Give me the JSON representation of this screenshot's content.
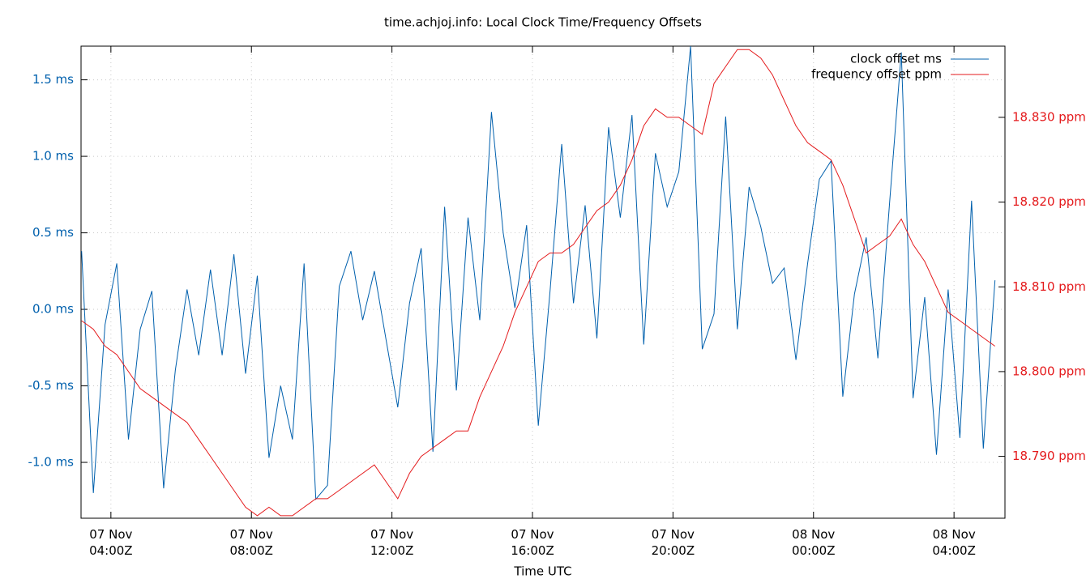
{
  "chart_data": {
    "type": "line",
    "title": "time.achjoj.info: Local Clock Time/Frequency Offsets",
    "x_label": "Time UTC",
    "grid": true,
    "legend": "top-right",
    "x": [
      "07 Nov 03:10Z",
      "07 Nov 03:30Z",
      "07 Nov 03:50Z",
      "07 Nov 04:10Z",
      "07 Nov 04:30Z",
      "07 Nov 04:50Z",
      "07 Nov 05:10Z",
      "07 Nov 05:30Z",
      "07 Nov 05:50Z",
      "07 Nov 06:10Z",
      "07 Nov 06:30Z",
      "07 Nov 06:50Z",
      "07 Nov 07:10Z",
      "07 Nov 07:30Z",
      "07 Nov 07:50Z",
      "07 Nov 08:10Z",
      "07 Nov 08:30Z",
      "07 Nov 08:50Z",
      "07 Nov 09:10Z",
      "07 Nov 09:30Z",
      "07 Nov 09:50Z",
      "07 Nov 10:10Z",
      "07 Nov 10:30Z",
      "07 Nov 10:50Z",
      "07 Nov 11:10Z",
      "07 Nov 11:30Z",
      "07 Nov 11:50Z",
      "07 Nov 12:10Z",
      "07 Nov 12:30Z",
      "07 Nov 12:50Z",
      "07 Nov 13:10Z",
      "07 Nov 13:30Z",
      "07 Nov 13:50Z",
      "07 Nov 14:10Z",
      "07 Nov 14:30Z",
      "07 Nov 14:50Z",
      "07 Nov 15:10Z",
      "07 Nov 15:30Z",
      "07 Nov 15:50Z",
      "07 Nov 16:10Z",
      "07 Nov 16:30Z",
      "07 Nov 16:50Z",
      "07 Nov 17:10Z",
      "07 Nov 17:30Z",
      "07 Nov 17:50Z",
      "07 Nov 18:10Z",
      "07 Nov 18:30Z",
      "07 Nov 18:50Z",
      "07 Nov 19:10Z",
      "07 Nov 19:30Z",
      "07 Nov 19:50Z",
      "07 Nov 20:10Z",
      "07 Nov 20:30Z",
      "07 Nov 20:50Z",
      "07 Nov 21:10Z",
      "07 Nov 21:30Z",
      "07 Nov 21:50Z",
      "07 Nov 22:10Z",
      "07 Nov 22:30Z",
      "07 Nov 22:50Z",
      "07 Nov 23:10Z",
      "07 Nov 23:30Z",
      "07 Nov 23:50Z",
      "08 Nov 00:10Z",
      "08 Nov 00:30Z",
      "08 Nov 00:50Z",
      "08 Nov 01:10Z",
      "08 Nov 01:30Z",
      "08 Nov 01:50Z",
      "08 Nov 02:10Z",
      "08 Nov 02:30Z",
      "08 Nov 02:50Z",
      "08 Nov 03:10Z",
      "08 Nov 03:30Z",
      "08 Nov 03:50Z",
      "08 Nov 04:10Z",
      "08 Nov 04:30Z",
      "08 Nov 04:50Z",
      "08 Nov 05:10Z"
    ],
    "xlim": [
      "07 Nov 03:09Z",
      "08 Nov 05:27Z"
    ],
    "xticks": [
      "07 Nov 04:00Z",
      "07 Nov 08:00Z",
      "07 Nov 12:00Z",
      "07 Nov 16:00Z",
      "07 Nov 20:00Z",
      "08 Nov 00:00Z",
      "08 Nov 04:00Z"
    ],
    "ylim": [
      -1.365,
      1.72
    ],
    "yticks": [
      {
        "value": -1.0,
        "label": "-1.0 ms"
      },
      {
        "value": -0.5,
        "label": "-0.5 ms"
      },
      {
        "value": 0.0,
        "label": "0.0 ms"
      },
      {
        "value": 0.5,
        "label": "0.5 ms"
      },
      {
        "value": 1.0,
        "label": "1.0 ms"
      },
      {
        "value": 1.5,
        "label": "1.5 ms"
      }
    ],
    "y2lim": [
      18.7827,
      18.8384
    ],
    "y2ticks": [
      {
        "value": 18.79,
        "label": "18.790 ppm"
      },
      {
        "value": 18.8,
        "label": "18.800 ppm"
      },
      {
        "value": 18.81,
        "label": "18.810 ppm"
      },
      {
        "value": 18.82,
        "label": "18.820 ppm"
      },
      {
        "value": 18.83,
        "label": "18.830 ppm"
      }
    ],
    "series": [
      {
        "name": "clock offset ms",
        "color": "#0060ad",
        "values": [
          0.38,
          -1.2,
          -0.1,
          0.3,
          -0.85,
          -0.13,
          0.12,
          -1.17,
          -0.4,
          0.13,
          -0.3,
          0.26,
          -0.3,
          0.36,
          -0.42,
          0.22,
          -0.97,
          -0.5,
          -0.85,
          0.3,
          -1.24,
          -1.15,
          0.15,
          0.38,
          -0.07,
          0.25,
          -0.2,
          -0.64,
          0.04,
          0.4,
          -0.93,
          0.67,
          -0.53,
          0.6,
          -0.07,
          1.29,
          0.5,
          0.01,
          0.55,
          -0.76,
          0.12,
          1.08,
          0.04,
          0.68,
          -0.19,
          1.19,
          0.6,
          1.27,
          -0.23,
          1.02,
          0.67,
          0.9,
          1.72,
          -0.26,
          -0.03,
          1.26,
          -0.13,
          0.8,
          0.54,
          0.17,
          0.27,
          -0.33,
          0.3,
          0.85,
          0.97,
          -0.57,
          0.1,
          0.47,
          -0.32,
          0.7,
          1.68,
          -0.58,
          0.08,
          -0.95,
          0.13,
          -0.84,
          0.71,
          -0.91,
          0.19
        ]
      },
      {
        "name": "frequency offset ppm",
        "color": "#e41a1c",
        "axis": "y2",
        "values": [
          18.806,
          18.805,
          18.803,
          18.802,
          18.8,
          18.798,
          18.797,
          18.796,
          18.795,
          18.794,
          18.792,
          18.79,
          18.788,
          18.786,
          18.784,
          18.783,
          18.784,
          18.783,
          18.783,
          18.784,
          18.785,
          18.785,
          18.786,
          18.787,
          18.788,
          18.789,
          18.787,
          18.785,
          18.788,
          18.79,
          18.791,
          18.792,
          18.793,
          18.793,
          18.797,
          18.8,
          18.803,
          18.807,
          18.81,
          18.813,
          18.814,
          18.814,
          18.815,
          18.817,
          18.819,
          18.82,
          18.822,
          18.825,
          18.829,
          18.831,
          18.83,
          18.83,
          18.829,
          18.828,
          18.834,
          18.836,
          18.838,
          18.838,
          18.837,
          18.835,
          18.832,
          18.829,
          18.827,
          18.826,
          18.825,
          18.822,
          18.818,
          18.814,
          18.815,
          18.816,
          18.818,
          18.815,
          18.813,
          18.81,
          18.807,
          18.806,
          18.805,
          18.804,
          18.803
        ]
      }
    ]
  }
}
